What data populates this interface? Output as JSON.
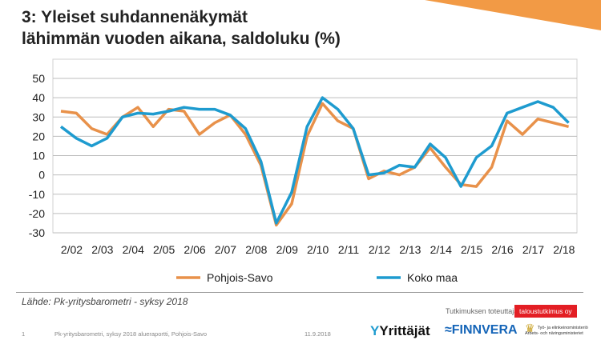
{
  "title_line1": "3: Yleiset suhdannenäkymät",
  "title_line2": "lähimmän vuoden aikana, saldoluku (%)",
  "chart_data": {
    "type": "line",
    "title": "3: Yleiset suhdannenäkymät lähimmän vuoden aikana, saldoluku (%)",
    "ylim": [
      -30,
      50
    ],
    "yticks": [
      "50",
      "40",
      "30",
      "20",
      "10",
      "0",
      "-10",
      "-20",
      "-30"
    ],
    "xtick_labels": [
      "2/02",
      "2/03",
      "2/04",
      "2/05",
      "2/06",
      "2/07",
      "2/08",
      "2/09",
      "2/10",
      "2/11",
      "2/12",
      "2/13",
      "2/14",
      "2/15",
      "2/16",
      "2/17",
      "2/18"
    ],
    "grid": true,
    "legend_position": "bottom",
    "series": [
      {
        "name": "Pohjois-Savo",
        "color": "#E8914A",
        "values": [
          33,
          32,
          24,
          21,
          30,
          35,
          25,
          34,
          33,
          21,
          27,
          31,
          21,
          5,
          -26,
          -15,
          20,
          37,
          28,
          24,
          -2,
          2,
          0,
          4,
          14,
          4,
          -5,
          -6,
          4,
          28,
          21,
          29,
          27,
          25
        ]
      },
      {
        "name": "Koko maa",
        "color": "#1E9BCF",
        "values": [
          25,
          19,
          15,
          19,
          30,
          32,
          31.5,
          33,
          35,
          34,
          34,
          31,
          24,
          7,
          -25,
          -9,
          25,
          40,
          34,
          24,
          0,
          1,
          5,
          4,
          16,
          9,
          -6,
          9,
          15,
          32,
          35,
          38,
          35,
          27
        ]
      }
    ]
  },
  "source": "Lähde: Pk-yritysbarometri - syksy 2018",
  "footer": {
    "conducted_by": "Tutkimuksen toteuttaja:",
    "research_firm": "taloustutkimus oy",
    "page": "1",
    "report": "Pk-yritysbarometri,  syksy 2018 alueraportti,  Pohjois-Savo",
    "date": "11.9.2018",
    "logos": [
      "Yrittäjät",
      "FINNVERA",
      "Työ- ja elinkeinoministeriö Arbets- och näringsministeriet"
    ]
  }
}
